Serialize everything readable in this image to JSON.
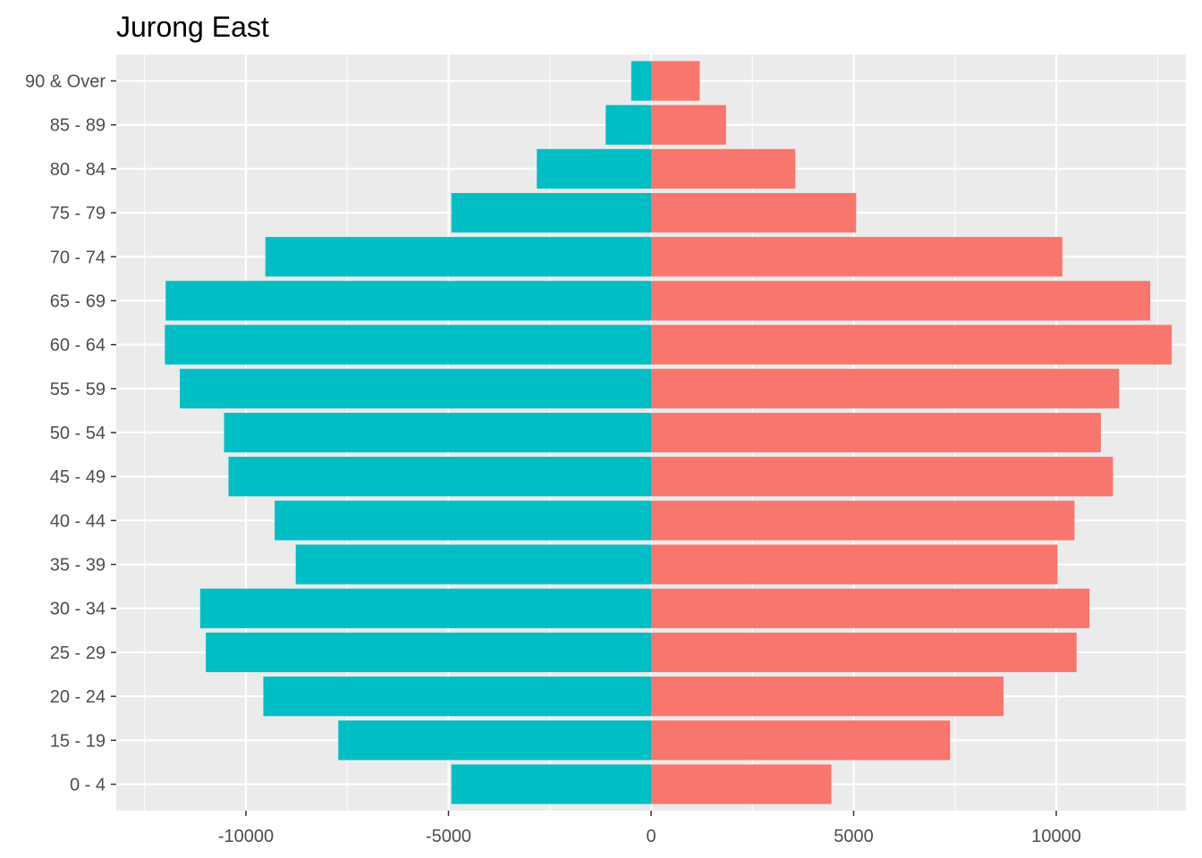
{
  "title": "Jurong East",
  "chart_data": {
    "type": "bar",
    "orientation": "horizontal",
    "title": "Jurong East",
    "xlabel": "",
    "ylabel": "",
    "xlim": [
      -13200,
      13200
    ],
    "x_ticks": [
      -10000,
      -5000,
      0,
      5000,
      10000
    ],
    "x_tick_labels": [
      "-10000",
      "-5000",
      "0",
      "5000",
      "10000"
    ],
    "categories": [
      "0 - 4",
      "15 - 19",
      "20 - 24",
      "25 - 29",
      "30 - 34",
      "35 - 39",
      "40 - 44",
      "45 - 49",
      "50 - 54",
      "55 - 59",
      "60 - 64",
      "65 - 69",
      "70 - 74",
      "75 - 79",
      "80 - 84",
      "85 - 89",
      "90 & Over"
    ],
    "series": [
      {
        "values": [
          4450,
          7380,
          8700,
          10500,
          10820,
          10030,
          10450,
          11400,
          11100,
          11550,
          12850,
          12320,
          10150,
          5060,
          3560,
          1850,
          1200
        ]
      },
      {
        "values": [
          -4930,
          -7720,
          -9570,
          -10990,
          -11130,
          -8770,
          -9290,
          -10430,
          -10540,
          -11630,
          -12000,
          -11980,
          -9520,
          -4930,
          -2820,
          -1120,
          -490
        ]
      }
    ],
    "colors": {
      "positive_series": "#F8766D",
      "negative_series": "#00BFC4",
      "panel_background": "#EBEBEB",
      "grid_line": "#FFFFFF",
      "tick_text": "#4D4D4D"
    },
    "grid": true,
    "legend": "none"
  }
}
